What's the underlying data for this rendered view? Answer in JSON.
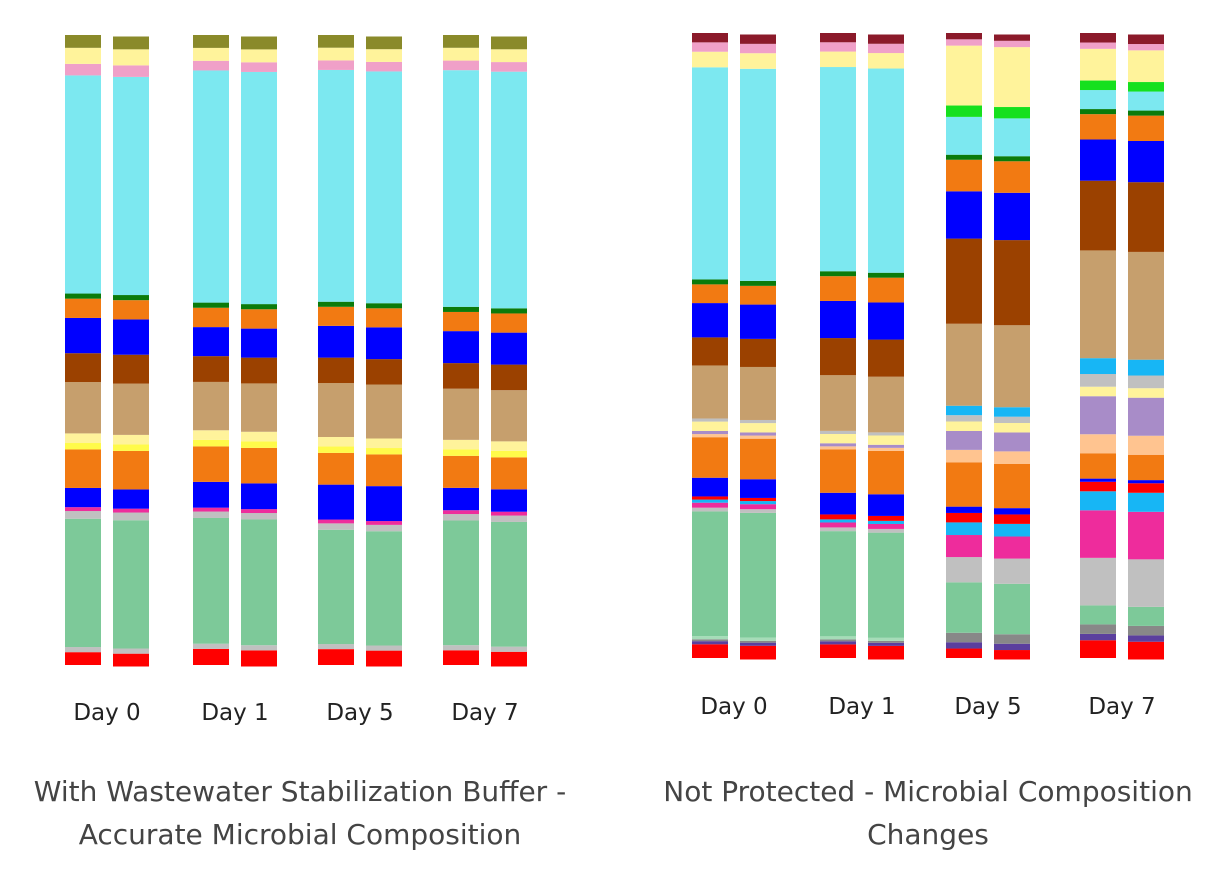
{
  "captions": {
    "left": "With Wastewater Stabilization Buffer - Accurate Microbial Composition",
    "right": "Not Protected - Microbial Composition Changes"
  },
  "colors": {
    "red": "#ff0000",
    "lightgreen": "#7dc999",
    "grey": "#c0c0c0",
    "pink": "#ee2c9c",
    "blue": "#0000ff",
    "orange": "#f27a12",
    "yellow": "#fffb4a",
    "cream": "#fff39b",
    "tan": "#c69f6d",
    "brown": "#9b4100",
    "darkgreen": "#0b7b0b",
    "cyan": "#7ce8f0",
    "lightpink": "#f0a0c8",
    "olive": "#8a8a2a",
    "lavender": "#a88cc8",
    "peach": "#ffc490",
    "skyblue": "#17b6f5",
    "brightgreen": "#16e01e",
    "darkred": "#8b1a2a",
    "purple": "#5b3f9e",
    "darkgrey": "#888888",
    "mint": "#a6dcb8"
  },
  "chart_data": [
    {
      "type": "bar",
      "stacked": true,
      "normalized": true,
      "title": "",
      "xlabel": "",
      "ylabel": "",
      "categories": [
        "Day 0",
        "Day 1",
        "Day 5",
        "Day 7"
      ],
      "replicates_per_category": 2,
      "caption": "With Wastewater Stabilization Buffer - Accurate Microbial Composition",
      "series_bottom_to_top": [
        {
          "color": "red",
          "values": [
            2,
            2.5,
            2.5,
            2.3
          ]
        },
        {
          "color": "grey",
          "values": [
            0.8,
            0.8,
            0.8,
            0.8
          ]
        },
        {
          "color": "lightgreen",
          "values": [
            20,
            19.5,
            18,
            19.5
          ]
        },
        {
          "color": "grey",
          "values": [
            1.2,
            1,
            1,
            1
          ]
        },
        {
          "color": "pink",
          "values": [
            0.6,
            0.6,
            0.6,
            0.6
          ]
        },
        {
          "color": "blue",
          "values": [
            3,
            4,
            5.5,
            3.5
          ]
        },
        {
          "color": "orange",
          "values": [
            6,
            5.5,
            5,
            5
          ]
        },
        {
          "color": "yellow",
          "values": [
            1,
            1,
            1,
            1
          ]
        },
        {
          "color": "cream",
          "values": [
            1.5,
            1.5,
            1.5,
            1.5
          ]
        },
        {
          "color": "tan",
          "values": [
            8,
            7.5,
            8.5,
            8
          ]
        },
        {
          "color": "brown",
          "values": [
            4.5,
            4,
            4,
            4
          ]
        },
        {
          "color": "blue",
          "values": [
            5.5,
            4.5,
            5,
            5
          ]
        },
        {
          "color": "orange",
          "values": [
            3,
            3,
            3,
            3
          ]
        },
        {
          "color": "darkgreen",
          "values": [
            0.8,
            0.8,
            0.8,
            0.8
          ]
        },
        {
          "color": "cyan",
          "values": [
            34,
            36,
            36.5,
            37
          ]
        },
        {
          "color": "lightpink",
          "values": [
            1.8,
            1.5,
            1.5,
            1.5
          ]
        },
        {
          "color": "cream",
          "values": [
            2.5,
            2,
            2,
            2
          ]
        },
        {
          "color": "olive",
          "values": [
            2,
            2,
            2,
            2
          ]
        }
      ]
    },
    {
      "type": "bar",
      "stacked": true,
      "normalized": true,
      "title": "",
      "xlabel": "",
      "ylabel": "",
      "categories": [
        "Day 0",
        "Day 1",
        "Day 5",
        "Day 7"
      ],
      "replicates_per_category": 2,
      "caption": "Not Protected - Microbial Composition Changes",
      "series_bottom_to_top": [
        {
          "color": "red",
          "values": [
            2.2,
            2.2,
            1.5,
            2.8
          ]
        },
        {
          "color": "purple",
          "values": [
            0.5,
            0.5,
            1,
            1
          ]
        },
        {
          "color": "darkgrey",
          "values": [
            0.3,
            0.3,
            1.5,
            1.5
          ]
        },
        {
          "color": "mint",
          "values": [
            0.5,
            0.5,
            0,
            0
          ]
        },
        {
          "color": "lightgreen",
          "values": [
            20,
            17,
            8,
            3
          ]
        },
        {
          "color": "grey",
          "values": [
            0.6,
            0.6,
            4,
            7.5
          ]
        },
        {
          "color": "pink",
          "values": [
            0.8,
            0.8,
            3.5,
            7.5
          ]
        },
        {
          "color": "skyblue",
          "values": [
            0.5,
            0.5,
            2,
            3
          ]
        },
        {
          "color": "red",
          "values": [
            0.5,
            0.8,
            1.5,
            1.5
          ]
        },
        {
          "color": "blue",
          "values": [
            3,
            3.5,
            1,
            0.5
          ]
        },
        {
          "color": "orange",
          "values": [
            6.5,
            7,
            7,
            4
          ]
        },
        {
          "color": "peach",
          "values": [
            0.5,
            0.5,
            2,
            3
          ]
        },
        {
          "color": "lavender",
          "values": [
            0.5,
            0.5,
            3,
            6
          ]
        },
        {
          "color": "cream",
          "values": [
            1.5,
            1.5,
            1.5,
            1.5
          ]
        },
        {
          "color": "grey",
          "values": [
            0.5,
            0.5,
            1,
            2
          ]
        },
        {
          "color": "skyblue",
          "values": [
            0,
            0,
            1.5,
            2.5
          ]
        },
        {
          "color": "tan",
          "values": [
            8.5,
            9,
            13,
            17
          ]
        },
        {
          "color": "brown",
          "values": [
            4.5,
            6,
            13.5,
            11
          ]
        },
        {
          "color": "blue",
          "values": [
            5.5,
            6,
            7.5,
            6.5
          ]
        },
        {
          "color": "orange",
          "values": [
            3,
            4,
            5,
            4
          ]
        },
        {
          "color": "darkgreen",
          "values": [
            0.8,
            0.8,
            0.8,
            0.8
          ]
        },
        {
          "color": "cyan",
          "values": [
            34,
            33,
            6,
            3
          ]
        },
        {
          "color": "brightgreen",
          "values": [
            0,
            0,
            1.8,
            1.5
          ]
        },
        {
          "color": "cream",
          "values": [
            2.5,
            2.5,
            9.5,
            5
          ]
        },
        {
          "color": "lightpink",
          "values": [
            1.5,
            1.5,
            1,
            1
          ]
        },
        {
          "color": "darkred",
          "values": [
            1.5,
            1.5,
            1,
            1.5
          ]
        }
      ]
    }
  ]
}
